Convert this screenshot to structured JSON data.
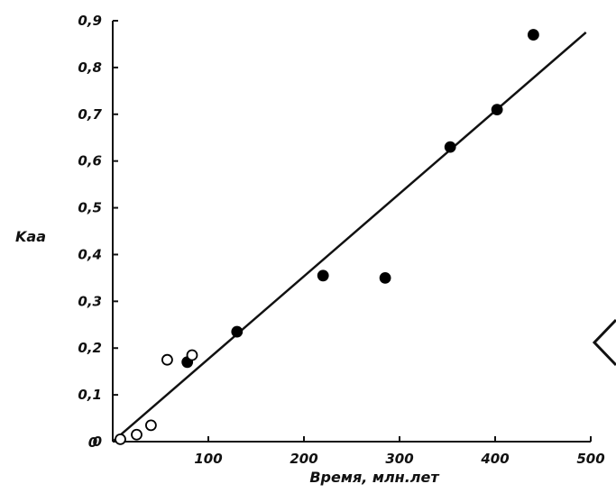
{
  "chart_data": {
    "type": "scatter",
    "title": "",
    "xlabel": "Время, млн.лет",
    "ylabel": "Kaa",
    "xlim": [
      0,
      500
    ],
    "ylim": [
      0,
      0.9
    ],
    "x_ticks": [
      0,
      100,
      200,
      300,
      400,
      500
    ],
    "x_tick_labels": [
      "0",
      "100",
      "200",
      "300",
      "400",
      "500"
    ],
    "y_ticks": [
      0,
      0.1,
      0.2,
      0.3,
      0.4,
      0.5,
      0.6,
      0.7,
      0.8,
      0.9
    ],
    "y_tick_labels": [
      "0",
      "0,1",
      "0,2",
      "0,3",
      "0,4",
      "0,5",
      "0,6",
      "0,7",
      "0,8",
      "0,9"
    ],
    "grid": false,
    "series": [
      {
        "marker": "filled-circle",
        "color": "#000000",
        "x": [
          78,
          130,
          220,
          285,
          353,
          402,
          440
        ],
        "y": [
          0.17,
          0.235,
          0.355,
          0.35,
          0.63,
          0.71,
          0.87
        ]
      },
      {
        "marker": "open-circle",
        "color": "#000000",
        "x": [
          8,
          25,
          40,
          57,
          83
        ],
        "y": [
          0.005,
          0.015,
          0.035,
          0.175,
          0.185
        ]
      }
    ],
    "trendline": {
      "x": [
        0,
        495
      ],
      "y": [
        0,
        0.875
      ]
    }
  },
  "ui": {
    "side_icon": "chevron-left-icon"
  }
}
